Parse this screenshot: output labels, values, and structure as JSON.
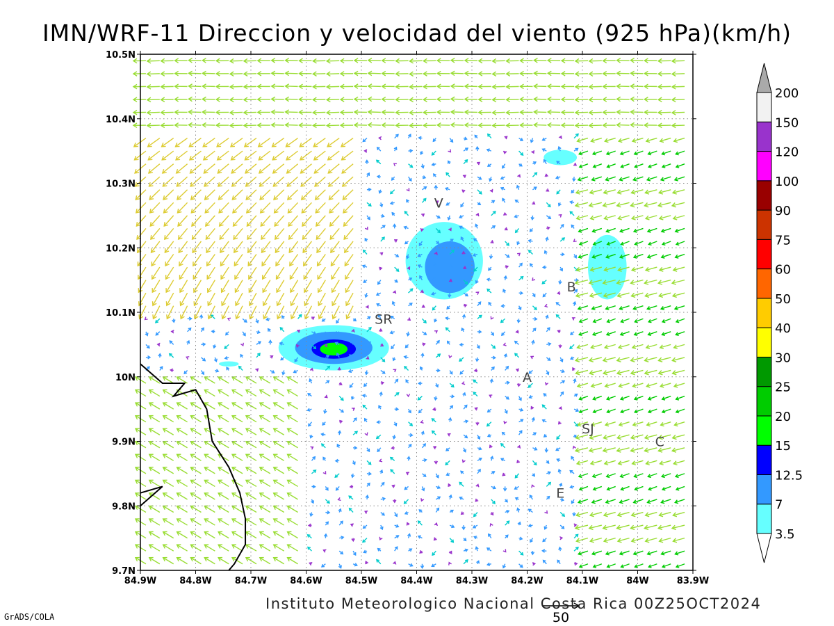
{
  "title": "IMN/WRF-11 Direccion y velocidad del viento (925 hPa)(km/h)",
  "footer_institution": "Instituto Meteorologico Nacional Costa Rica 00Z25OCT2024",
  "footer_credit": "GrADS/COLA",
  "map": {
    "lon_range": [
      -84.9,
      -83.9
    ],
    "lat_range": [
      9.7,
      10.5
    ],
    "lon_ticks": [
      "84.9W",
      "84.8W",
      "84.7W",
      "84.6W",
      "84.5W",
      "84.4W",
      "84.3W",
      "84.2W",
      "84.1W",
      "84W",
      "83.9W"
    ],
    "lat_ticks": [
      "9.7N",
      "9.8N",
      "9.9N",
      "10N",
      "10.1N",
      "10.2N",
      "10.3N",
      "10.4N",
      "10.5N"
    ],
    "grid": "dotted",
    "cities": [
      {
        "label": "V",
        "lon": -84.36,
        "lat": 10.27
      },
      {
        "label": "B",
        "lon": -84.12,
        "lat": 10.14
      },
      {
        "label": "SR",
        "lon": -84.46,
        "lat": 10.09
      },
      {
        "label": "A",
        "lon": -84.2,
        "lat": 10.0
      },
      {
        "label": "SJ",
        "lon": -84.09,
        "lat": 9.92
      },
      {
        "label": "C",
        "lon": -83.96,
        "lat": 9.9
      },
      {
        "label": "E",
        "lon": -84.14,
        "lat": 9.82
      }
    ],
    "coastline": [
      [
        -84.9,
        10.02
      ],
      [
        -84.86,
        9.99
      ],
      [
        -84.82,
        9.99
      ],
      [
        -84.84,
        9.97
      ],
      [
        -84.8,
        9.98
      ],
      [
        -84.78,
        9.95
      ],
      [
        -84.77,
        9.9
      ],
      [
        -84.74,
        9.86
      ],
      [
        -84.72,
        9.82
      ],
      [
        -84.71,
        9.78
      ],
      [
        -84.71,
        9.74
      ],
      [
        -84.73,
        9.71
      ],
      [
        -84.74,
        9.7
      ]
    ],
    "coastline_2": [
      [
        -84.9,
        9.82
      ],
      [
        -84.86,
        9.83
      ],
      [
        -84.9,
        9.8
      ]
    ],
    "reference_vector": {
      "value": "50",
      "units": "km/h"
    }
  },
  "shaded_regions": [
    {
      "lon": -84.35,
      "lat": 10.18,
      "rx_deg": 0.07,
      "ry_deg": 0.06,
      "level": "3.5"
    },
    {
      "lon": -84.34,
      "lat": 10.17,
      "rx_deg": 0.045,
      "ry_deg": 0.04,
      "level": "7"
    },
    {
      "lon": -84.55,
      "lat": 10.045,
      "rx_deg": 0.1,
      "ry_deg": 0.035,
      "level": "3.5"
    },
    {
      "lon": -84.55,
      "lat": 10.045,
      "rx_deg": 0.07,
      "ry_deg": 0.025,
      "level": "7"
    },
    {
      "lon": -84.55,
      "lat": 10.043,
      "rx_deg": 0.04,
      "ry_deg": 0.015,
      "level": "12.5"
    },
    {
      "lon": -84.55,
      "lat": 10.043,
      "rx_deg": 0.025,
      "ry_deg": 0.01,
      "level": "15"
    },
    {
      "lon": -84.055,
      "lat": 10.17,
      "rx_deg": 0.035,
      "ry_deg": 0.05,
      "level": "3.5"
    },
    {
      "lon": -84.14,
      "lat": 10.34,
      "rx_deg": 0.03,
      "ry_deg": 0.012,
      "level": "3.5"
    },
    {
      "lon": -84.74,
      "lat": 10.02,
      "rx_deg": 0.018,
      "ry_deg": 0.004,
      "level": "3.5"
    }
  ],
  "colorbar": {
    "levels": [
      {
        "label": "3.5",
        "color": "#66ffff"
      },
      {
        "label": "7",
        "color": "#3399ff"
      },
      {
        "label": "12.5",
        "color": "#0000ff"
      },
      {
        "label": "15",
        "color": "#00ff00"
      },
      {
        "label": "20",
        "color": "#00cc00"
      },
      {
        "label": "25",
        "color": "#009900"
      },
      {
        "label": "30",
        "color": "#ffff00"
      },
      {
        "label": "40",
        "color": "#ffcc00"
      },
      {
        "label": "50",
        "color": "#ff6600"
      },
      {
        "label": "60",
        "color": "#ff0000"
      },
      {
        "label": "75",
        "color": "#cc3300"
      },
      {
        "label": "90",
        "color": "#990000"
      },
      {
        "label": "100",
        "color": "#ff00ff"
      },
      {
        "label": "120",
        "color": "#9933cc"
      },
      {
        "label": "150",
        "color": "#f2f2f2"
      },
      {
        "label": "200",
        "color": "#aaaaaa"
      }
    ]
  },
  "wind_colors": {
    "calm": "#9933cc",
    "light": "#3399ff",
    "moderate": "#00cccc",
    "fresh": "#00cc00",
    "strong": "#99dd33",
    "stronger": "#ddcc33",
    "very_strong": "#ff9933",
    "gale": "#ff3333"
  },
  "wind_field": {
    "description_free": true,
    "grid_lon_step": 0.025,
    "grid_lat_step": 0.02,
    "regions": [
      {
        "name": "north",
        "lat_min": 10.38,
        "u": -6,
        "v": 0
      },
      {
        "name": "nw_jet",
        "lon_max": -84.5,
        "lat_min": 10.1,
        "lat_max": 10.38,
        "u": -4,
        "v": -6
      },
      {
        "name": "central",
        "lon_min": -84.5,
        "lon_max": -84.1,
        "lat_min": 9.85,
        "lat_max": 10.3,
        "u": 0,
        "v": -2
      },
      {
        "name": "sw",
        "lon_max": -84.6,
        "lat_max": 10.0,
        "u": -6,
        "v": 3
      },
      {
        "name": "east",
        "lon_min": -84.1,
        "u": -5,
        "v": -2
      }
    ]
  }
}
